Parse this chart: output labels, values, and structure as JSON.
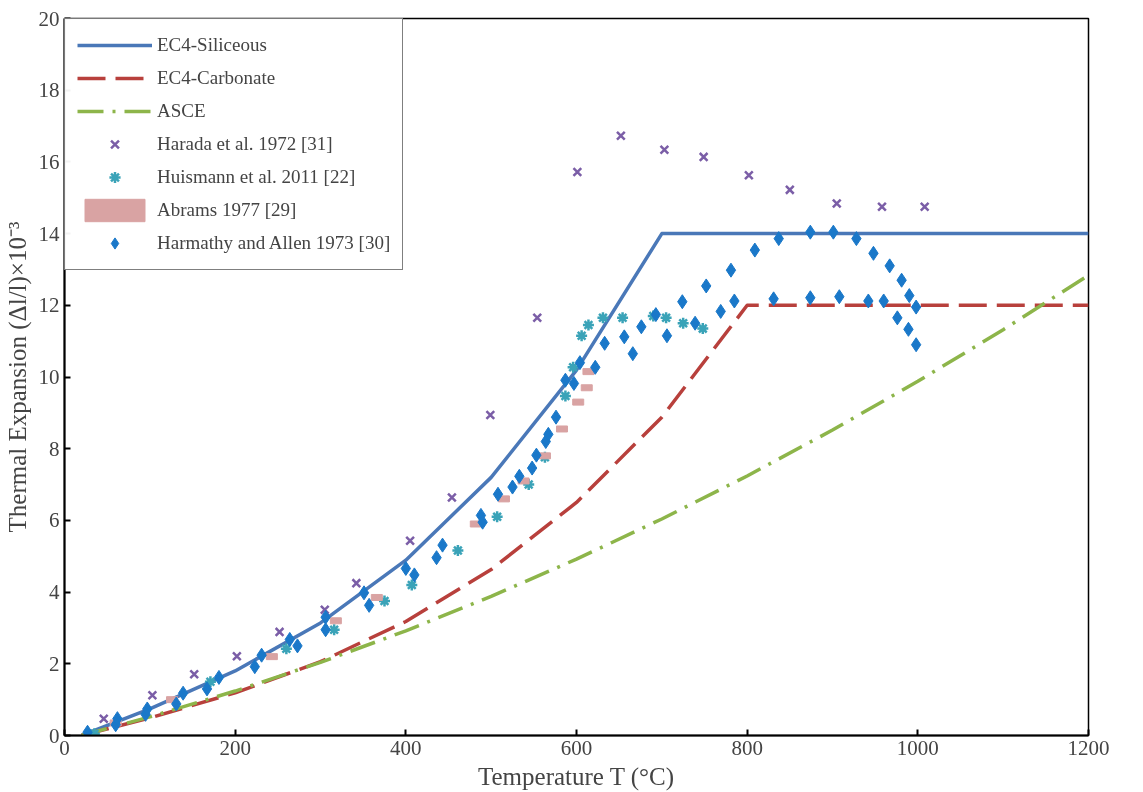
{
  "chart_data": {
    "type": "line",
    "xlabel": "Temperature T (°C)",
    "ylabel": "Thermal Expansion (Δl/l)×10⁻³",
    "xlim": [
      0,
      1200
    ],
    "ylim": [
      0,
      20
    ],
    "xticks": [
      0,
      200,
      400,
      600,
      800,
      1000,
      1200
    ],
    "yticks": [
      0,
      2,
      4,
      6,
      8,
      10,
      12,
      14,
      16,
      18,
      20
    ],
    "grid": false,
    "legend": "top left",
    "series": [
      {
        "name": "EC4-Siliceous",
        "line_style": "solid",
        "color": "#4a78b8",
        "x": [
          20,
          100,
          200,
          300,
          400,
          500,
          600,
          700,
          1200
        ],
        "values": [
          0.0,
          0.74,
          1.8,
          3.14,
          4.89,
          7.2,
          10.19,
          14.0,
          14.0
        ]
      },
      {
        "name": "EC4-Carbonate",
        "line_style": "dashed",
        "color": "#b8403c",
        "x": [
          20,
          100,
          200,
          300,
          400,
          500,
          600,
          700,
          800,
          1200
        ],
        "values": [
          0.0,
          0.49,
          1.19,
          2.06,
          3.18,
          4.63,
          6.5,
          8.88,
          12.0,
          12.0
        ]
      },
      {
        "name": "ASCE",
        "line_style": "dashdot",
        "color": "#8db54a",
        "x": [
          20,
          100,
          200,
          300,
          400,
          500,
          600,
          700,
          800,
          900,
          1000,
          1100,
          1200
        ],
        "values": [
          0.0,
          0.52,
          1.24,
          2.04,
          2.92,
          3.88,
          4.92,
          6.04,
          7.24,
          8.52,
          9.88,
          11.32,
          12.84
        ]
      },
      {
        "name": "Harada et al. 1972 [31]",
        "type": "scatter",
        "marker": "x",
        "color": "#7b5ea7",
        "x": [
          46,
          103,
          152,
          202,
          252,
          305,
          342,
          405,
          454,
          499,
          554,
          601,
          652,
          703,
          749,
          802,
          850,
          905,
          958,
          1008
        ],
        "values": [
          0.47,
          1.12,
          1.71,
          2.21,
          2.89,
          3.51,
          4.25,
          5.43,
          6.64,
          8.94,
          11.65,
          15.72,
          16.73,
          16.34,
          16.14,
          15.63,
          15.22,
          14.84,
          14.75,
          14.75
        ]
      },
      {
        "name": "Huismann et al. 2011 [22]",
        "type": "scatter",
        "marker": "cross",
        "color": "#3aa3b8",
        "x": [
          35,
          171,
          260,
          316,
          375,
          407,
          461,
          507,
          544,
          563,
          587,
          596,
          606,
          614,
          631,
          654,
          690,
          705,
          725,
          748
        ],
        "values": [
          0.05,
          1.5,
          2.42,
          2.95,
          3.75,
          4.2,
          5.16,
          6.1,
          7.0,
          7.76,
          9.47,
          10.27,
          11.15,
          11.45,
          11.65,
          11.65,
          11.7,
          11.65,
          11.5,
          11.35
        ]
      },
      {
        "name": "Abrams 1977 [29]",
        "type": "scatter",
        "marker": "square",
        "color": "#d9a3a3",
        "x": [
          60,
          126,
          243,
          318,
          366,
          482,
          515,
          538,
          563,
          583,
          602,
          612,
          614
        ],
        "values": [
          0.35,
          1.0,
          2.2,
          3.2,
          3.85,
          5.9,
          6.6,
          7.1,
          7.8,
          8.55,
          9.3,
          9.7,
          10.15
        ]
      },
      {
        "name": "Harmathy and Allen 1973 [30]",
        "type": "scatter",
        "marker": "diamond",
        "color": "#1a78c9",
        "x": [
          27,
          60,
          62,
          95,
          97,
          131,
          139,
          167,
          181,
          223,
          231,
          264,
          273,
          306,
          306,
          351,
          357,
          400,
          410,
          436,
          443,
          488,
          490,
          508,
          525,
          533,
          548,
          553,
          564,
          567,
          576,
          587,
          597,
          604,
          622,
          633,
          656,
          666,
          676,
          693,
          706,
          724,
          739,
          752,
          769,
          781,
          785,
          809,
          831,
          837,
          874,
          874,
          901,
          908,
          928,
          942,
          948,
          960,
          967,
          976,
          981,
          989,
          990,
          998,
          998
        ],
        "values": [
          0.09,
          0.3,
          0.47,
          0.59,
          0.74,
          0.88,
          1.18,
          1.3,
          1.62,
          1.92,
          2.24,
          2.68,
          2.5,
          3.3,
          2.95,
          3.98,
          3.63,
          4.66,
          4.48,
          4.96,
          5.31,
          6.14,
          5.95,
          6.73,
          6.93,
          7.23,
          7.46,
          7.82,
          8.2,
          8.4,
          8.88,
          9.91,
          9.82,
          10.4,
          10.27,
          10.94,
          11.12,
          10.65,
          11.4,
          11.74,
          11.15,
          12.1,
          11.5,
          12.54,
          11.83,
          12.98,
          12.12,
          13.54,
          12.18,
          13.86,
          14.04,
          12.21,
          14.04,
          12.24,
          13.86,
          12.12,
          13.45,
          12.12,
          13.1,
          11.65,
          12.7,
          11.33,
          12.27,
          11.95,
          10.9
        ]
      }
    ]
  }
}
